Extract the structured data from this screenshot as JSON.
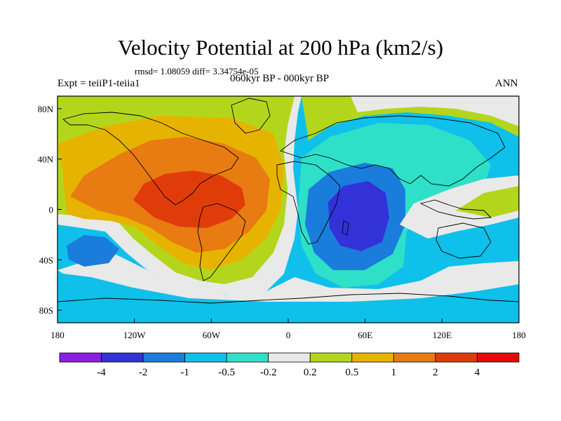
{
  "title": "Velocity Potential at 200 hPa (km2/s)",
  "stats": "rmsd= 1.08059 diff= 3.34754e-05",
  "experiment": "Expt = teiiP1-teiia1",
  "period": "060kyr BP - 000kyr BP",
  "season": "ANN",
  "x_ticks": [
    "180",
    "120W",
    "60W",
    "0",
    "60E",
    "120E",
    "180"
  ],
  "y_ticks": [
    "80N",
    "40N",
    "0",
    "40S",
    "80S"
  ],
  "colorbar": {
    "colors": [
      "#8a1fe6",
      "#3232d8",
      "#1a7ddc",
      "#0fc0ea",
      "#2ee0c8",
      "#e9e9e9",
      "#b3d61c",
      "#e6b400",
      "#e87b12",
      "#e03c0a",
      "#e60a0a"
    ],
    "labels": [
      "-4",
      "-2",
      "-1",
      "-0.5",
      "-0.2",
      "0.2",
      "0.5",
      "1",
      "2",
      "4"
    ]
  },
  "fill_colors": {
    "ocean_base": "#0fc0ea",
    "neutral": "#e9e9e9",
    "light_green": "#b3d61c",
    "yellow": "#e6b400",
    "orange": "#e87b12",
    "red_orange": "#e03c0a",
    "cyan": "#2ee0c8",
    "blue": "#1a7ddc",
    "dark_blue": "#3232d8"
  }
}
